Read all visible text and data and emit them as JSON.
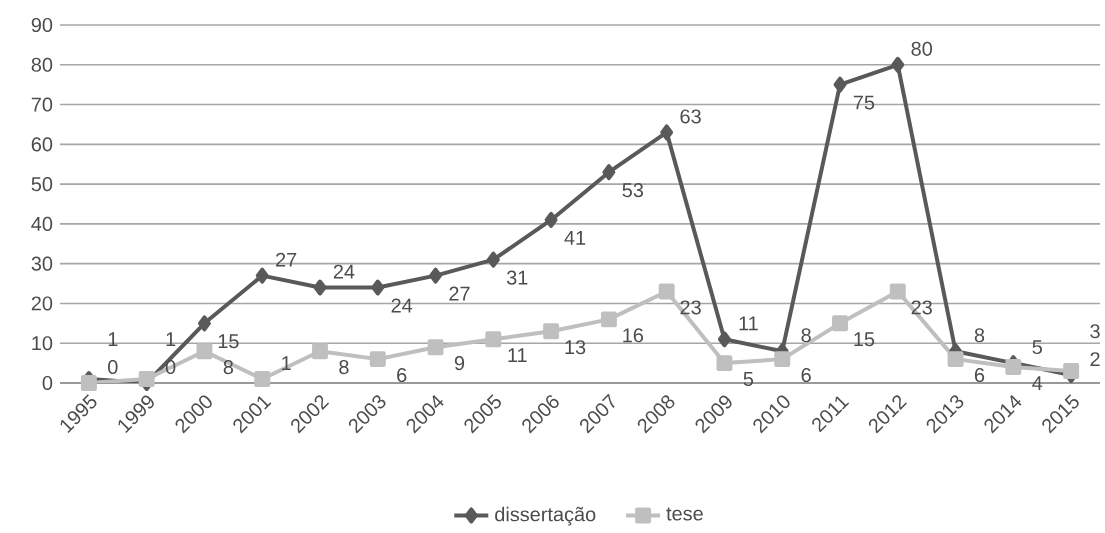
{
  "chart_data": {
    "type": "line",
    "categories": [
      "1995",
      "1999",
      "2000",
      "2001",
      "2002",
      "2003",
      "2004",
      "2005",
      "2006",
      "2007",
      "2008",
      "2009",
      "2010",
      "2011",
      "2012",
      "2013",
      "2014",
      "2015"
    ],
    "series": [
      {
        "name": "dissertação",
        "color": "#595959",
        "marker": "diamond",
        "values": [
          1,
          0,
          15,
          27,
          24,
          24,
          27,
          31,
          41,
          53,
          63,
          11,
          8,
          75,
          80,
          8,
          5,
          2
        ]
      },
      {
        "name": "tese",
        "color": "#bfbfbf",
        "marker": "square",
        "values": [
          0,
          1,
          8,
          1,
          8,
          6,
          9,
          11,
          13,
          16,
          23,
          5,
          6,
          15,
          23,
          6,
          4,
          3
        ]
      }
    ],
    "ylim": [
      0,
      90
    ],
    "yticks": [
      0,
      10,
      20,
      30,
      40,
      50,
      60,
      70,
      80,
      90
    ],
    "grid": "y",
    "legend": "bottom",
    "data_labels": true
  }
}
